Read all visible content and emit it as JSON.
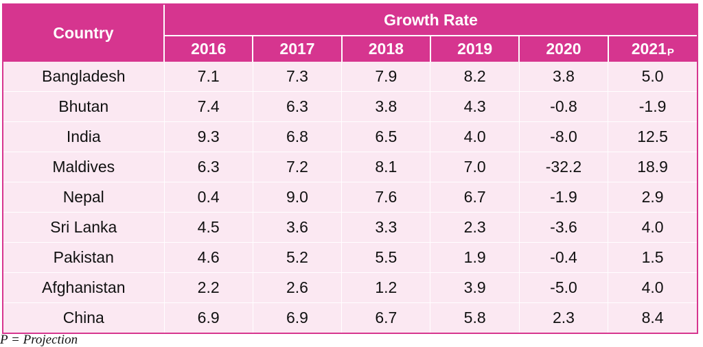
{
  "table": {
    "country_header": "Country",
    "group_header": "Growth Rate",
    "years": [
      {
        "label": "2016",
        "suffix": ""
      },
      {
        "label": "2017",
        "suffix": ""
      },
      {
        "label": "2018",
        "suffix": ""
      },
      {
        "label": "2019",
        "suffix": ""
      },
      {
        "label": "2020",
        "suffix": ""
      },
      {
        "label": "2021",
        "suffix": "P"
      }
    ],
    "rows": [
      {
        "country": "Bangladesh",
        "values": [
          "7.1",
          "7.3",
          "7.9",
          "8.2",
          "3.8",
          "5.0"
        ]
      },
      {
        "country": "Bhutan",
        "values": [
          "7.4",
          "6.3",
          "3.8",
          "4.3",
          "-0.8",
          "-1.9"
        ]
      },
      {
        "country": "India",
        "values": [
          "9.3",
          "6.8",
          "6.5",
          "4.0",
          "-8.0",
          "12.5"
        ]
      },
      {
        "country": "Maldives",
        "values": [
          "6.3",
          "7.2",
          "8.1",
          "7.0",
          "-32.2",
          "18.9"
        ]
      },
      {
        "country": "Nepal",
        "values": [
          "0.4",
          "9.0",
          "7.6",
          "6.7",
          "-1.9",
          "2.9"
        ]
      },
      {
        "country": "Sri Lanka",
        "values": [
          "4.5",
          "3.6",
          "3.3",
          "2.3",
          "-3.6",
          "4.0"
        ]
      },
      {
        "country": "Pakistan",
        "values": [
          "4.6",
          "5.2",
          "5.5",
          "1.9",
          "-0.4",
          "1.5"
        ]
      },
      {
        "country": "Afghanistan",
        "values": [
          "2.2",
          "2.6",
          "1.2",
          "3.9",
          "-5.0",
          "4.0"
        ]
      },
      {
        "country": "China",
        "values": [
          "6.9",
          "6.9",
          "6.7",
          "5.8",
          "2.3",
          "8.4"
        ]
      }
    ]
  },
  "footnote": "P = Projection",
  "colors": {
    "header_bg": "#d6358f",
    "body_bg": "#fbe8f2",
    "header_text": "#ffffff"
  }
}
